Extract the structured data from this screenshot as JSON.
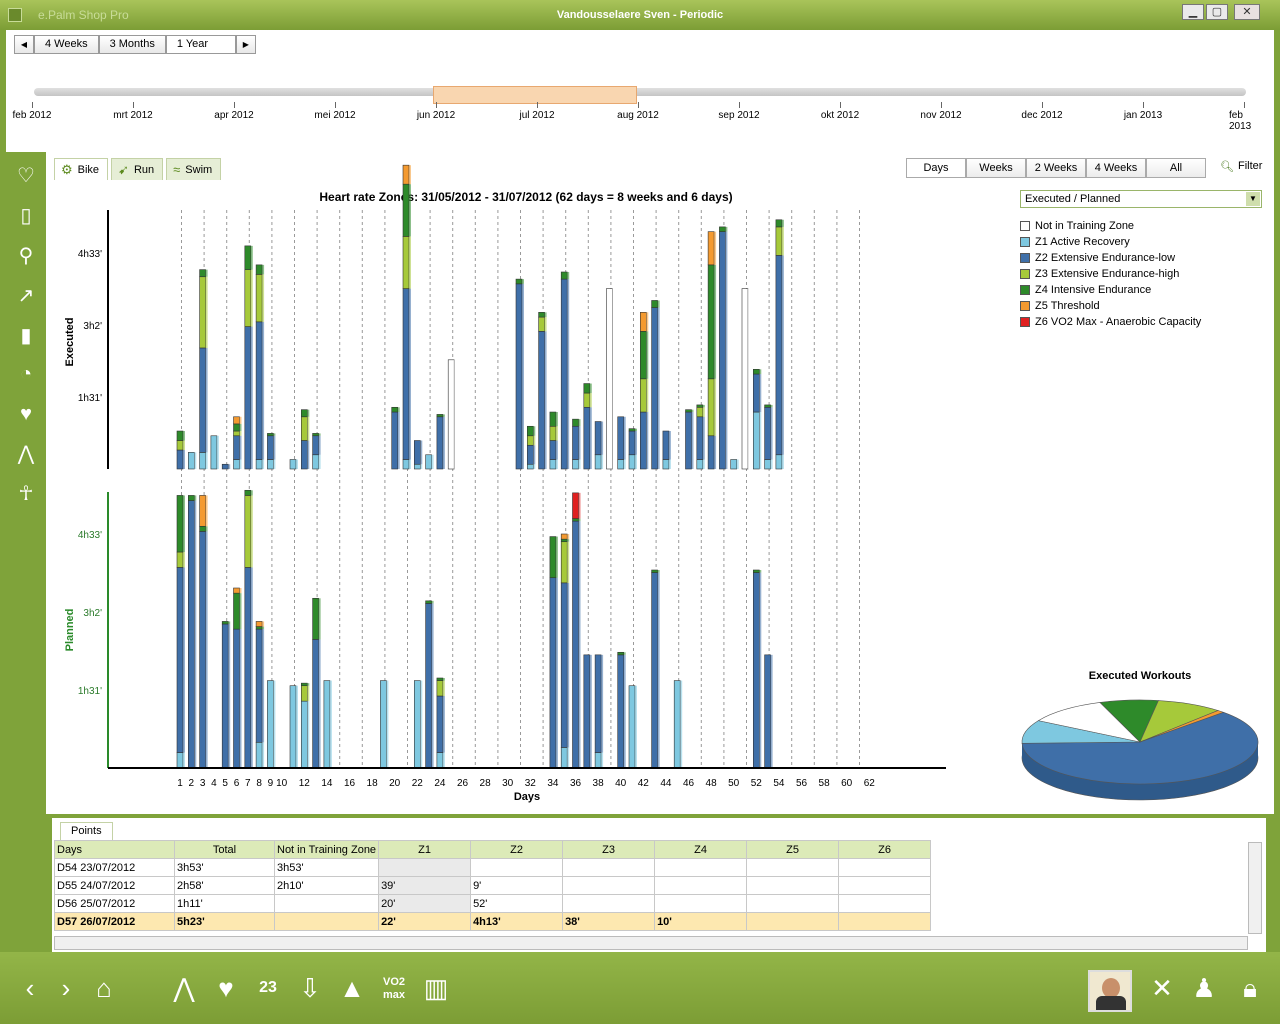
{
  "window": {
    "title": "Vandousselaere Sven - Periodic",
    "app_name": "e.Palm Shop Pro",
    "minimize": "▁",
    "maximize": "▢",
    "close": "✕"
  },
  "period_buttons": [
    "4 Weeks",
    "3 Months",
    "1 Year"
  ],
  "timeline_months": [
    "feb 2012",
    "mrt 2012",
    "apr 2012",
    "mei 2012",
    "jun 2012",
    "jul 2012",
    "aug 2012",
    "sep 2012",
    "okt 2012",
    "nov 2012",
    "dec 2012",
    "jan 2013",
    "feb 2013"
  ],
  "sport_tabs": [
    "Bike",
    "Run",
    "Swim"
  ],
  "range_buttons": [
    "Days",
    "Weeks",
    "2 Weeks",
    "4 Weeks",
    "All"
  ],
  "filter_label": "Filter",
  "view_select": "Executed / Planned",
  "legend": [
    {
      "label": "Not in Training Zone",
      "color": "#ffffff"
    },
    {
      "label": "Z1 Active Recovery",
      "color": "#7ec8e0"
    },
    {
      "label": "Z2 Extensive Endurance-low",
      "color": "#3f6fa8"
    },
    {
      "label": "Z3 Extensive Endurance-high",
      "color": "#a6c93a"
    },
    {
      "label": "Z4 Intensive Endurance",
      "color": "#2e8a2a"
    },
    {
      "label": "Z5 Threshold",
      "color": "#f49a30"
    },
    {
      "label": "Z6 VO2 Max - Anaerobic Capacity",
      "color": "#e02020"
    }
  ],
  "pie_title": "Executed Workouts",
  "chart_data": {
    "type": "bar",
    "title": "Heart rate Zones: 31/05/2012 - 31/07/2012 (62 days = 8 weeks and 6 days)",
    "xlabel": "Days",
    "x_ticks": [
      "1",
      "2",
      "3",
      "4",
      "5",
      "6",
      "7",
      "8",
      "9",
      "10",
      "12",
      "14",
      "16",
      "18",
      "20",
      "22",
      "24",
      "26",
      "28",
      "30",
      "32",
      "34",
      "36",
      "38",
      "40",
      "42",
      "44",
      "46",
      "48",
      "50",
      "52",
      "54",
      "56",
      "58",
      "60",
      "62"
    ],
    "panels": [
      {
        "ylabel": "Executed",
        "y_ticks": [
          "1h31'",
          "3h2'",
          "4h33'"
        ]
      },
      {
        "ylabel": "Planned",
        "y_ticks": [
          "1h31'",
          "3h2'",
          "4h33'"
        ]
      }
    ],
    "zones": [
      "NotInZone",
      "Z1",
      "Z2",
      "Z3",
      "Z4",
      "Z5",
      "Z6"
    ],
    "executed": [
      {
        "day": 1,
        "s": [
          0,
          0,
          0.4,
          0.2,
          0.2,
          0,
          0
        ]
      },
      {
        "day": 2,
        "s": [
          0,
          0.35,
          0,
          0,
          0,
          0,
          0
        ]
      },
      {
        "day": 3,
        "s": [
          0,
          0.35,
          2.2,
          1.5,
          0.15,
          0,
          0
        ]
      },
      {
        "day": 4,
        "s": [
          0,
          0.7,
          0,
          0,
          0,
          0,
          0
        ]
      },
      {
        "day": 5,
        "s": [
          0,
          0,
          0.1,
          0,
          0,
          0,
          0
        ]
      },
      {
        "day": 6,
        "s": [
          0,
          0.2,
          0.5,
          0.1,
          0.15,
          0.15,
          0
        ]
      },
      {
        "day": 7,
        "s": [
          0,
          0,
          3.0,
          1.2,
          0.5,
          0,
          0
        ]
      },
      {
        "day": 8,
        "s": [
          0,
          0.2,
          2.9,
          1.0,
          0.2,
          0,
          0
        ]
      },
      {
        "day": 9,
        "s": [
          0,
          0.2,
          0.5,
          0,
          0.05,
          0,
          0
        ]
      },
      {
        "day": 11,
        "s": [
          0,
          0.2,
          0,
          0,
          0,
          0,
          0
        ]
      },
      {
        "day": 12,
        "s": [
          0,
          0,
          0.6,
          0.5,
          0.15,
          0,
          0
        ]
      },
      {
        "day": 13,
        "s": [
          0,
          0.3,
          0.4,
          0,
          0.05,
          0,
          0
        ]
      },
      {
        "day": 20,
        "s": [
          0,
          0,
          1.2,
          0,
          0.1,
          0,
          0
        ]
      },
      {
        "day": 21,
        "s": [
          0,
          0.2,
          3.6,
          1.1,
          1.1,
          0.4,
          0
        ]
      },
      {
        "day": 22,
        "s": [
          0,
          0.1,
          0.5,
          0,
          0,
          0,
          0
        ]
      },
      {
        "day": 23,
        "s": [
          0,
          0.3,
          0,
          0,
          0,
          0,
          0
        ]
      },
      {
        "day": 24,
        "s": [
          0,
          0,
          1.1,
          0,
          0.05,
          0,
          0
        ]
      },
      {
        "day": 25,
        "s": [
          2.3,
          0,
          0,
          0,
          0,
          0,
          0
        ]
      },
      {
        "day": 31,
        "s": [
          0,
          0,
          3.9,
          0,
          0.1,
          0,
          0
        ]
      },
      {
        "day": 32,
        "s": [
          0,
          0.1,
          0.4,
          0.2,
          0.2,
          0,
          0
        ]
      },
      {
        "day": 33,
        "s": [
          0,
          0,
          2.9,
          0.3,
          0.1,
          0,
          0
        ]
      },
      {
        "day": 34,
        "s": [
          0,
          0.2,
          0.4,
          0.3,
          0.3,
          0,
          0
        ]
      },
      {
        "day": 35,
        "s": [
          0,
          0,
          4.0,
          0,
          0.15,
          0,
          0
        ]
      },
      {
        "day": 36,
        "s": [
          0,
          0.2,
          0.7,
          0,
          0.15,
          0,
          0
        ]
      },
      {
        "day": 37,
        "s": [
          0,
          0,
          1.3,
          0.3,
          0.2,
          0,
          0
        ]
      },
      {
        "day": 38,
        "s": [
          0,
          0.3,
          0.7,
          0,
          0,
          0,
          0
        ]
      },
      {
        "day": 39,
        "s": [
          3.8,
          0,
          0,
          0,
          0,
          0,
          0
        ]
      },
      {
        "day": 40,
        "s": [
          0,
          0.2,
          0.9,
          0,
          0,
          0,
          0
        ]
      },
      {
        "day": 41,
        "s": [
          0,
          0.3,
          0.5,
          0,
          0.05,
          0,
          0
        ]
      },
      {
        "day": 42,
        "s": [
          0,
          0,
          1.2,
          0.7,
          1.0,
          0.4,
          0
        ]
      },
      {
        "day": 43,
        "s": [
          0,
          0,
          3.4,
          0,
          0.15,
          0,
          0
        ]
      },
      {
        "day": 44,
        "s": [
          0,
          0.2,
          0.6,
          0,
          0,
          0,
          0
        ]
      },
      {
        "day": 46,
        "s": [
          0,
          0,
          1.2,
          0,
          0.05,
          0,
          0
        ]
      },
      {
        "day": 47,
        "s": [
          0,
          0.2,
          0.9,
          0.2,
          0.05,
          0,
          0
        ]
      },
      {
        "day": 48,
        "s": [
          0,
          0,
          0.7,
          1.2,
          2.4,
          0.7,
          0
        ]
      },
      {
        "day": 49,
        "s": [
          0,
          0,
          5.0,
          0,
          0.1,
          0,
          0
        ]
      },
      {
        "day": 50,
        "s": [
          0,
          0.2,
          0,
          0,
          0,
          0,
          0
        ]
      },
      {
        "day": 51,
        "s": [
          3.8,
          0,
          0,
          0,
          0,
          0,
          0
        ]
      },
      {
        "day": 52,
        "s": [
          0,
          1.2,
          0.8,
          0,
          0.1,
          0,
          0
        ]
      },
      {
        "day": 53,
        "s": [
          0,
          0.2,
          1.1,
          0,
          0.05,
          0,
          0
        ]
      },
      {
        "day": 54,
        "s": [
          0,
          0.3,
          4.2,
          0.6,
          0.15,
          0,
          0
        ]
      }
    ],
    "planned": [
      {
        "day": 1,
        "s": [
          0,
          0.3,
          3.6,
          0.3,
          1.1,
          0,
          0
        ]
      },
      {
        "day": 2,
        "s": [
          0,
          0,
          5.2,
          0,
          0.1,
          0,
          0
        ]
      },
      {
        "day": 3,
        "s": [
          0,
          0,
          4.6,
          0,
          0.1,
          0.6,
          0
        ]
      },
      {
        "day": 5,
        "s": [
          0,
          0,
          2.8,
          0,
          0.05,
          0,
          0
        ]
      },
      {
        "day": 6,
        "s": [
          0,
          0,
          2.7,
          0,
          0.7,
          0.1,
          0
        ]
      },
      {
        "day": 7,
        "s": [
          0,
          0,
          3.9,
          1.4,
          0.1,
          0,
          0
        ]
      },
      {
        "day": 8,
        "s": [
          0,
          0.5,
          2.2,
          0,
          0.05,
          0.1,
          0
        ]
      },
      {
        "day": 9,
        "s": [
          0,
          1.7,
          0,
          0,
          0,
          0,
          0
        ]
      },
      {
        "day": 11,
        "s": [
          0,
          1.6,
          0,
          0,
          0,
          0,
          0
        ]
      },
      {
        "day": 12,
        "s": [
          0,
          1.3,
          0,
          0.3,
          0.05,
          0,
          0
        ]
      },
      {
        "day": 13,
        "s": [
          0,
          0,
          2.5,
          0,
          0.8,
          0,
          0
        ]
      },
      {
        "day": 14,
        "s": [
          0,
          1.7,
          0,
          0,
          0,
          0,
          0
        ]
      },
      {
        "day": 19,
        "s": [
          0,
          1.7,
          0,
          0,
          0,
          0,
          0
        ]
      },
      {
        "day": 22,
        "s": [
          0,
          1.7,
          0,
          0,
          0,
          0,
          0
        ]
      },
      {
        "day": 23,
        "s": [
          0,
          0,
          3.2,
          0,
          0.05,
          0,
          0
        ]
      },
      {
        "day": 24,
        "s": [
          0,
          0.3,
          1.1,
          0.3,
          0.05,
          0,
          0
        ]
      },
      {
        "day": 34,
        "s": [
          0,
          0,
          3.7,
          0,
          0.8,
          0,
          0
        ]
      },
      {
        "day": 35,
        "s": [
          0,
          0.4,
          3.2,
          0.8,
          0.05,
          0.1,
          0
        ]
      },
      {
        "day": 36,
        "s": [
          0,
          0,
          4.8,
          0,
          0.05,
          0,
          0.5
        ]
      },
      {
        "day": 37,
        "s": [
          0,
          0,
          2.2,
          0,
          0,
          0,
          0
        ]
      },
      {
        "day": 38,
        "s": [
          0,
          0.3,
          1.9,
          0,
          0,
          0,
          0
        ]
      },
      {
        "day": 40,
        "s": [
          0,
          0,
          2.2,
          0,
          0.05,
          0,
          0
        ]
      },
      {
        "day": 41,
        "s": [
          0,
          1.6,
          0,
          0,
          0,
          0,
          0
        ]
      },
      {
        "day": 43,
        "s": [
          0,
          0,
          3.8,
          0,
          0.05,
          0,
          0
        ]
      },
      {
        "day": 45,
        "s": [
          0,
          1.7,
          0,
          0,
          0,
          0,
          0
        ]
      },
      {
        "day": 52,
        "s": [
          0,
          0,
          3.8,
          0,
          0.05,
          0,
          0
        ]
      },
      {
        "day": 53,
        "s": [
          0,
          0,
          2.2,
          0,
          0,
          0,
          0
        ]
      }
    ]
  },
  "pie_data": {
    "type": "pie",
    "slices": [
      {
        "zone": "Z2",
        "value": 62,
        "color": "#3f6fa8"
      },
      {
        "zone": "Z1",
        "value": 9,
        "color": "#7ec8e0"
      },
      {
        "zone": "NotInZone",
        "value": 11,
        "color": "#ffffff"
      },
      {
        "zone": "Z4",
        "value": 8,
        "color": "#2e8a2a"
      },
      {
        "zone": "Z3",
        "value": 9,
        "color": "#a6c93a"
      },
      {
        "zone": "Z5",
        "value": 1,
        "color": "#f49a30"
      }
    ]
  },
  "points_tab": "Points",
  "table": {
    "headers": [
      "Days",
      "Total",
      "Not in Training Zone",
      "Z1",
      "Z2",
      "Z3",
      "Z4",
      "Z5",
      "Z6"
    ],
    "rows": [
      {
        "day": "D54 23/07/2012",
        "total": "3h53'",
        "nitz": "3h53'",
        "z1": "",
        "z2": "",
        "z3": "",
        "z4": "",
        "z5": "",
        "z6": ""
      },
      {
        "day": "D55 24/07/2012",
        "total": "2h58'",
        "nitz": "2h10'",
        "z1": "39'",
        "z2": "9'",
        "z3": "",
        "z4": "",
        "z5": "",
        "z6": ""
      },
      {
        "day": "D56 25/07/2012",
        "total": "1h11'",
        "nitz": "",
        "z1": "20'",
        "z2": "52'",
        "z3": "",
        "z4": "",
        "z5": "",
        "z6": ""
      }
    ],
    "total_row": {
      "day": "D57 26/07/2012",
      "total": "5h23'",
      "nitz": "",
      "z1": "22'",
      "z2": "4h13'",
      "z3": "38'",
      "z4": "10'",
      "z5": "",
      "z6": ""
    }
  },
  "sidebar_icons": [
    "heart-search-icon",
    "phone-search-icon",
    "triathlon-icon",
    "chart-up-icon",
    "battery-icon",
    "speedometer-icon",
    "heart-weight-icon",
    "compass-icon",
    "person-icon"
  ],
  "bottom_icons": [
    "back-icon",
    "forward-icon",
    "home-icon",
    "compass-icon",
    "heart-icon",
    "calendar-icon",
    "download-icon",
    "image-icon",
    "vo2max-icon",
    "stats-icon",
    "tools-icon",
    "users-icon",
    "lock-icon"
  ],
  "bottom_labels": {
    "calendar": "23",
    "vo2": "VO2 max"
  }
}
